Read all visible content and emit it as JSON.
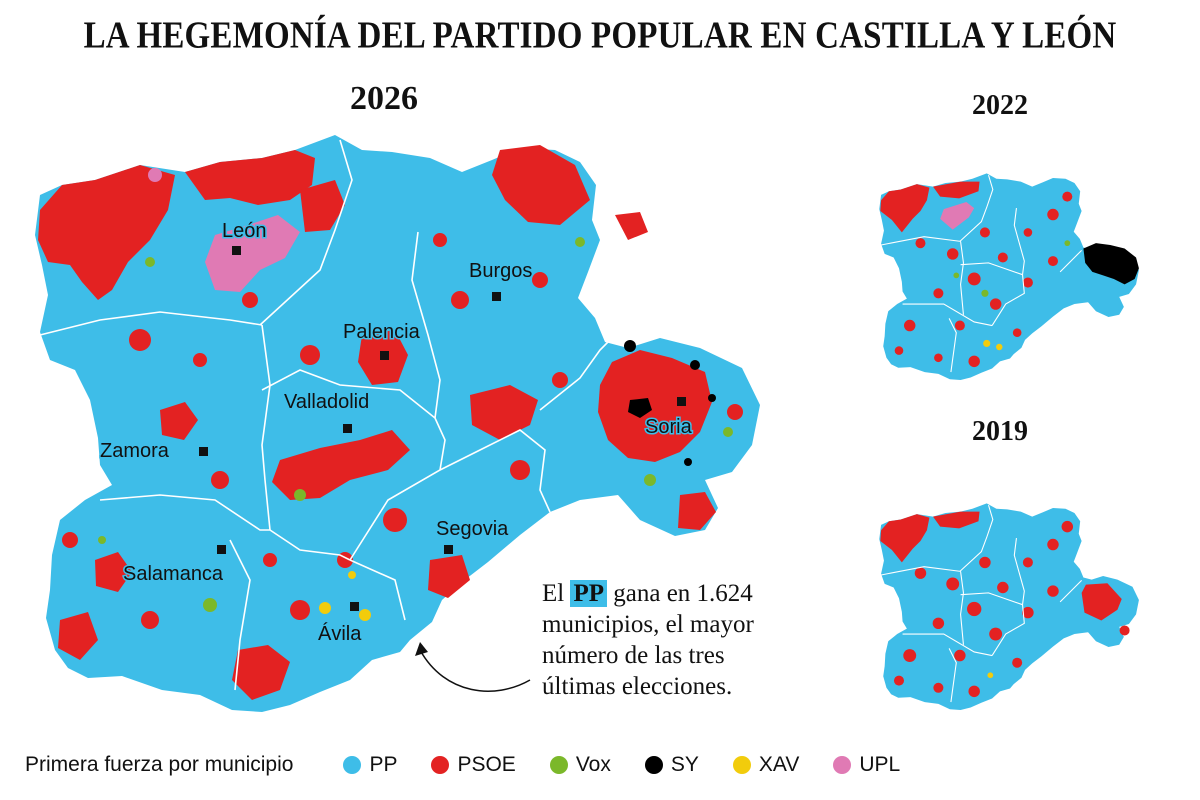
{
  "title": "LA HEGEMONÍA DEL PARTIDO POPULAR EN CASTILLA Y LEÓN",
  "maps": {
    "main": {
      "year": "2026"
    },
    "small_top": {
      "year": "2022"
    },
    "small_bottom": {
      "year": "2019"
    }
  },
  "cities": {
    "leon": "León",
    "burgos": "Burgos",
    "palencia": "Palencia",
    "valladolid": "Valladolid",
    "soria": "Soria",
    "zamora": "Zamora",
    "segovia": "Segovia",
    "salamanca": "Salamanca",
    "avila": "Ávila"
  },
  "annotation": {
    "prefix": "El",
    "party": "PP",
    "suffix": "gana en 1.624 municipios, el mayor número de las tres últimas elecciones."
  },
  "legend": {
    "title": "Primera fuerza por municipio",
    "items": [
      {
        "label": "PP",
        "color": "#3ebde8"
      },
      {
        "label": "PSOE",
        "color": "#e32222"
      },
      {
        "label": "Vox",
        "color": "#7bb82a"
      },
      {
        "label": "SY",
        "color": "#000000"
      },
      {
        "label": "XAV",
        "color": "#f2cc0c"
      },
      {
        "label": "UPL",
        "color": "#e07ab4"
      }
    ]
  },
  "colors": {
    "pp": "#3ebde8",
    "psoe": "#e32222",
    "vox": "#7bb82a",
    "sy": "#000000",
    "xav": "#f2cc0c",
    "upl": "#e07ab4"
  }
}
